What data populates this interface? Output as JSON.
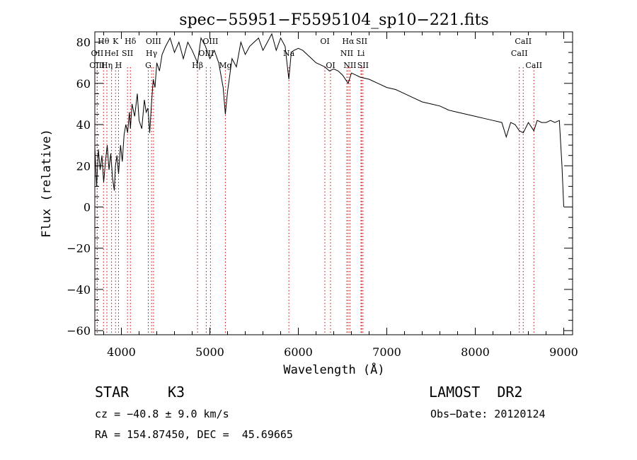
{
  "chart_data": {
    "type": "line",
    "title": "spec−55951−F5595104_sp10−221.fits",
    "xlabel": "Wavelength (Å)",
    "ylabel": "Flux (relative)",
    "xlim": [
      3700,
      9100
    ],
    "ylim": [
      -62,
      85
    ],
    "xticks": [
      4000,
      5000,
      6000,
      7000,
      8000,
      9000
    ],
    "yticks": [
      -60,
      -40,
      -20,
      0,
      20,
      40,
      60,
      80
    ],
    "grid": false,
    "line_color": "#000000",
    "marker_color": "#cc0000",
    "series": [
      {
        "x": [
          3700,
          3720,
          3740,
          3760,
          3780,
          3800,
          3820,
          3840,
          3860,
          3880,
          3900,
          3920,
          3933,
          3950,
          3968,
          3990,
          4010,
          4030,
          4050,
          4070,
          4090,
          4102,
          4120,
          4150,
          4180,
          4200,
          4230,
          4260,
          4280,
          4300,
          4320,
          4340,
          4360,
          4380,
          4400,
          4430,
          4460,
          4500,
          4550,
          4600,
          4650,
          4700,
          4750,
          4800,
          4861,
          4900,
          4950,
          5000,
          5050,
          5100,
          5150,
          5175,
          5200,
          5250,
          5300,
          5350,
          5400,
          5450,
          5500,
          5550,
          5600,
          5650,
          5700,
          5750,
          5800,
          5850,
          5893,
          5920,
          5950,
          6000,
          6050,
          6100,
          6150,
          6200,
          6250,
          6300,
          6350,
          6400,
          6450,
          6500,
          6563,
          6600,
          6650,
          6700,
          6800,
          6900,
          7000,
          7100,
          7200,
          7300,
          7400,
          7500,
          7600,
          7700,
          7800,
          7900,
          8000,
          8100,
          8200,
          8300,
          8350,
          8400,
          8450,
          8498,
          8542,
          8600,
          8662,
          8700,
          8750,
          8800,
          8850,
          8900,
          8950,
          8980,
          9000
        ],
        "y": [
          29,
          10,
          28,
          18,
          25,
          12,
          22,
          30,
          18,
          26,
          14,
          8,
          20,
          25,
          16,
          30,
          22,
          35,
          40,
          36,
          46,
          38,
          50,
          44,
          55,
          42,
          38,
          52,
          46,
          48,
          36,
          50,
          62,
          58,
          70,
          66,
          74,
          78,
          82,
          75,
          80,
          72,
          80,
          76,
          70,
          82,
          78,
          72,
          76,
          70,
          58,
          45,
          56,
          72,
          68,
          80,
          74,
          78,
          80,
          82,
          76,
          80,
          84,
          76,
          82,
          78,
          62,
          75,
          76,
          77,
          76,
          74,
          72,
          70,
          69,
          68,
          66,
          67,
          66,
          64,
          60,
          65,
          64,
          63,
          62,
          60,
          58,
          57,
          55,
          53,
          51,
          50,
          49,
          47,
          46,
          45,
          44,
          43,
          42,
          41,
          34,
          41,
          40,
          37,
          36,
          41,
          37,
          42,
          41,
          41,
          42,
          41,
          42,
          20,
          0
        ]
      }
    ],
    "line_markers": [
      {
        "label": "Hθ",
        "x": 3798,
        "row": 1
      },
      {
        "label": "K",
        "x": 3934,
        "row": 1
      },
      {
        "label": "Hδ",
        "x": 4102,
        "row": 1
      },
      {
        "label": "OII",
        "x": 3727,
        "row": 2
      },
      {
        "label": "HeI",
        "x": 3889,
        "row": 2
      },
      {
        "label": "SII",
        "x": 4069,
        "row": 2
      },
      {
        "label": "OIII",
        "x": 3726,
        "row": 3
      },
      {
        "label": "Hη",
        "x": 3836,
        "row": 3
      },
      {
        "label": "H",
        "x": 3968,
        "row": 3
      },
      {
        "label": "OIII",
        "x": 4363,
        "row": 1
      },
      {
        "label": "Hγ",
        "x": 4341,
        "row": 2
      },
      {
        "label": "G",
        "x": 4304,
        "row": 3
      },
      {
        "label": "OIII",
        "x": 5007,
        "row": 1
      },
      {
        "label": "OIII",
        "x": 4959,
        "row": 2
      },
      {
        "label": "Hβ",
        "x": 4861,
        "row": 3
      },
      {
        "label": "Mg",
        "x": 5175,
        "row": 3
      },
      {
        "label": "Na",
        "x": 5893,
        "row": 2
      },
      {
        "label": "OI",
        "x": 6300,
        "row": 1
      },
      {
        "label": "OI",
        "x": 6364,
        "row": 3
      },
      {
        "label": "Hα",
        "x": 6563,
        "row": 1
      },
      {
        "label": "SII",
        "x": 6716,
        "row": 1
      },
      {
        "label": "NII",
        "x": 6548,
        "row": 2
      },
      {
        "label": "Li",
        "x": 6708,
        "row": 2
      },
      {
        "label": "NII",
        "x": 6583,
        "row": 3
      },
      {
        "label": "SII",
        "x": 6731,
        "row": 3
      },
      {
        "label": "CaII",
        "x": 8542,
        "row": 1
      },
      {
        "label": "CaII",
        "x": 8498,
        "row": 2
      },
      {
        "label": "CaII",
        "x": 8662,
        "row": 3
      }
    ]
  },
  "info": {
    "object_class": "STAR",
    "subclass": "K3",
    "survey": "LAMOST  DR2",
    "cz": "cz = −40.8 ± 9.0 km/s",
    "obs_date": "Obs−Date: 20120124",
    "coords": "RA = 154.87450, DEC =  45.69665"
  }
}
